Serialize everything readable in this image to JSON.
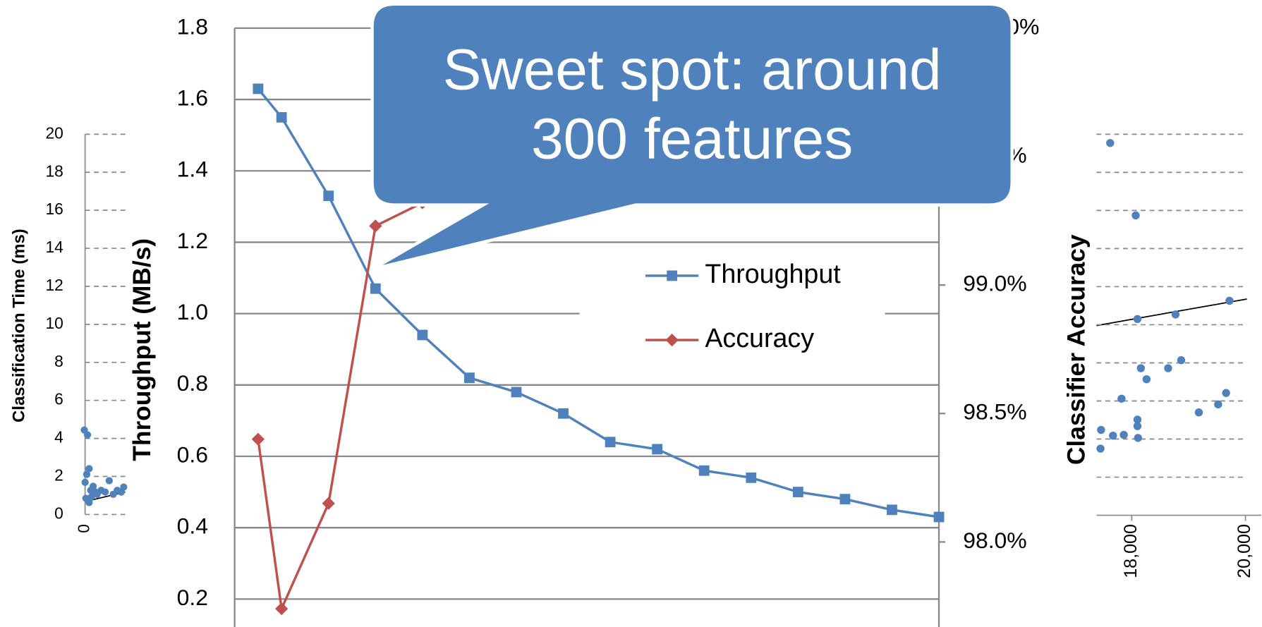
{
  "chart_data": [
    {
      "type": "scatter",
      "ylabel": "Classification Time (ms)",
      "color": "#4f81bd",
      "x": [
        -0.08,
        0.24,
        0,
        0.16,
        0.4,
        0.56,
        0.8,
        1.04,
        1.2,
        1.6,
        2,
        2.4,
        2.8,
        3.2,
        3.6,
        3.84,
        0.08,
        0.4,
        0.64
      ],
      "values": [
        4.44,
        4.19,
        1.69,
        2.11,
        2.41,
        1.27,
        1.48,
        1.18,
        1.06,
        1.27,
        1.18,
        1.78,
        1.06,
        1.27,
        1.18,
        1.44,
        0.85,
        0.63,
        0.93
      ],
      "xlim": [
        -0.4,
        4
      ],
      "xticks": [
        0
      ],
      "ylim": [
        0,
        20
      ],
      "yticks": [
        0,
        2,
        4,
        6,
        8,
        10,
        12,
        14,
        16,
        18,
        20
      ],
      "grid": true
    },
    {
      "type": "line",
      "ylabel": "Throughput (MB/s)",
      "x": [
        50,
        100,
        200,
        300,
        400,
        500,
        600,
        700,
        800,
        900,
        1000,
        1100,
        1200,
        1300,
        1400,
        1500
      ],
      "xlim": [
        0,
        1500
      ],
      "ylim": [
        0,
        1.8
      ],
      "yticks": [
        0.2,
        0.4,
        0.6,
        0.8,
        {
          "value": 1,
          "label": "1.0"
        },
        1.2,
        1.4,
        1.6,
        1.8
      ],
      "y2lim": [
        97.5,
        100
      ],
      "y2ticks": [
        {
          "value": 98,
          "label": "98.0%"
        },
        {
          "value": 98.5,
          "label": "98.5%"
        },
        {
          "value": 99,
          "label": "99.0%"
        },
        {
          "value": 99.5,
          "label": "99.5%"
        },
        {
          "value": 100,
          "label": "100.0%"
        }
      ],
      "grid": true,
      "series": [
        {
          "name": "Throughput",
          "color": "#4f81bd",
          "marker": "square",
          "values": [
            1.63,
            1.55,
            1.33,
            1.07,
            0.94,
            0.82,
            0.78,
            0.72,
            0.64,
            0.62,
            0.56,
            0.54,
            0.5,
            0.48,
            0.45,
            0.43
          ]
        },
        {
          "name": "Accuracy",
          "color": "#c0504d",
          "marker": "diamond",
          "axis": "y2",
          "values": [
            98.4,
            97.74,
            98.15,
            99.23,
            99.32,
            null,
            null,
            null,
            null,
            null,
            null,
            null,
            null,
            null,
            null,
            null
          ]
        }
      ]
    },
    {
      "type": "scatter",
      "ylabel": "Classifier Accuracy",
      "color": "#4f81bd",
      "x": [
        17620,
        18070,
        18100,
        18770,
        19720,
        18160,
        18260,
        18640,
        18870,
        17820,
        19660,
        19520,
        19180,
        18100,
        18100,
        17460,
        17670,
        17860,
        18110,
        17450
      ],
      "values": [
        9.77,
        7.87,
        5.15,
        5.27,
        5.63,
        3.86,
        3.57,
        3.86,
        4.07,
        3.06,
        3.21,
        2.91,
        2.7,
        2.51,
        2.34,
        2.24,
        2.09,
        2.11,
        2.03,
        1.75
      ],
      "xlim": [
        17380,
        20280
      ],
      "xticks": [
        {
          "value": 18000,
          "label": "18,000"
        },
        {
          "value": 20000,
          "label": "20,000"
        }
      ],
      "ylim": [
        0,
        10
      ],
      "yticks": [
        1,
        2,
        3,
        4,
        5,
        6,
        7,
        8,
        9,
        10
      ],
      "grid": true
    }
  ],
  "callout": "Sweet spot: around 300 features"
}
